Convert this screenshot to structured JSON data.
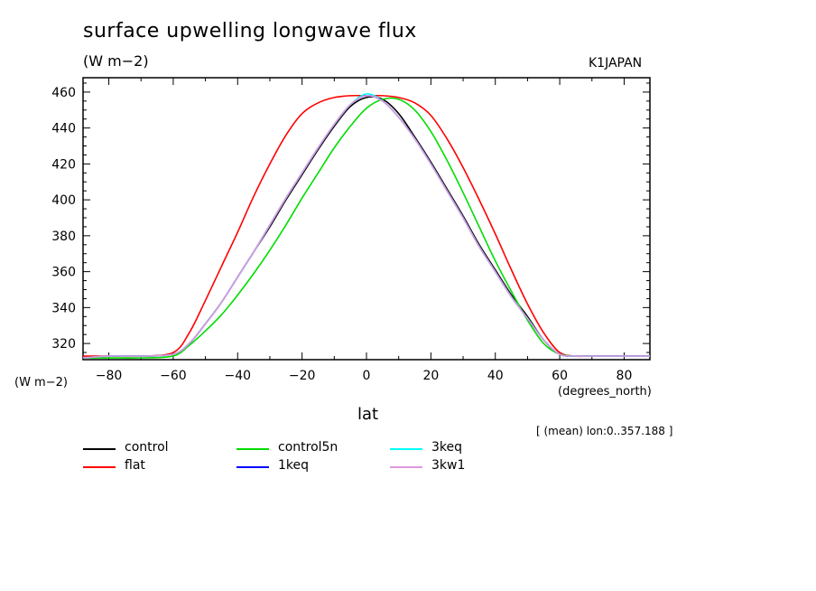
{
  "title": "surface upwelling longwave flux",
  "units_top": "(W m−2)",
  "model": "K1JAPAN",
  "units_left": "(W m−2)",
  "x_units": "(degrees_north)",
  "x_label": "lat",
  "mean_note": "[ (mean) lon:0..357.188 ]",
  "chart_data": {
    "type": "line",
    "title": "surface upwelling longwave flux",
    "xlabel": "lat",
    "ylabel": "(W m−2)",
    "xlim": [
      -88,
      88
    ],
    "ylim": [
      311,
      468
    ],
    "x_ticks": [
      -80,
      -60,
      -40,
      -20,
      0,
      20,
      40,
      60,
      80
    ],
    "x_tick_labels": [
      "−80",
      "−60",
      "−40",
      "−20",
      "0",
      "20",
      "40",
      "60",
      "80"
    ],
    "y_ticks": [
      320,
      340,
      360,
      380,
      400,
      420,
      440,
      460
    ],
    "x": [
      -88,
      -80,
      -70,
      -60,
      -55,
      -50,
      -45,
      -40,
      -35,
      -30,
      -25,
      -20,
      -15,
      -10,
      -5,
      0,
      5,
      10,
      15,
      20,
      25,
      30,
      35,
      40,
      45,
      50,
      55,
      60,
      65,
      70,
      80,
      88
    ],
    "series": [
      {
        "name": "control",
        "color": "#000000",
        "values": [
          312,
          313,
          313,
          314,
          320,
          331,
          343,
          357,
          371,
          385,
          400,
          414,
          428,
          441,
          452,
          457,
          456,
          448,
          435,
          421,
          406,
          391,
          375,
          361,
          347,
          335,
          322,
          314,
          313,
          313,
          313,
          313
        ]
      },
      {
        "name": "flat",
        "color": "#ff0000",
        "values": [
          313,
          313,
          313,
          315,
          326,
          344,
          363,
          382,
          402,
          420,
          436,
          448,
          454,
          457,
          458,
          458,
          458,
          457,
          454,
          447,
          434,
          418,
          400,
          381,
          361,
          342,
          326,
          315,
          313,
          313,
          313,
          313
        ]
      },
      {
        "name": "control5n",
        "color": "#00dd00",
        "values": [
          312,
          312,
          312,
          313,
          319,
          327,
          336,
          347,
          359,
          372,
          386,
          401,
          415,
          429,
          441,
          451,
          456,
          456,
          450,
          438,
          422,
          404,
          385,
          366,
          349,
          333,
          320,
          314,
          313,
          313,
          313,
          313
        ]
      },
      {
        "name": "1keq",
        "color": "#0000ff",
        "values": [
          312,
          313,
          313,
          314,
          320,
          331,
          343,
          357,
          371,
          386,
          401,
          415,
          429,
          442,
          453,
          458,
          455,
          446,
          434,
          420,
          405,
          390,
          374,
          360,
          346,
          334,
          322,
          314,
          313,
          313,
          313,
          313
        ]
      },
      {
        "name": "3keq",
        "color": "#00ffff",
        "values": [
          312,
          313,
          313,
          314,
          320,
          331,
          343,
          357,
          371,
          386,
          401,
          415,
          429,
          442,
          453,
          459,
          455,
          446,
          434,
          420,
          405,
          390,
          374,
          360,
          346,
          334,
          322,
          314,
          313,
          313,
          313,
          313
        ]
      },
      {
        "name": "3kw1",
        "color": "#dd99dd",
        "values": [
          312,
          313,
          313,
          314,
          320,
          331,
          343,
          357,
          371,
          386,
          401,
          415,
          429,
          442,
          453,
          458,
          455,
          446,
          434,
          420,
          405,
          390,
          374,
          360,
          346,
          334,
          322,
          314,
          313,
          313,
          313,
          313
        ]
      }
    ],
    "legend": "bottom",
    "grid": false
  }
}
